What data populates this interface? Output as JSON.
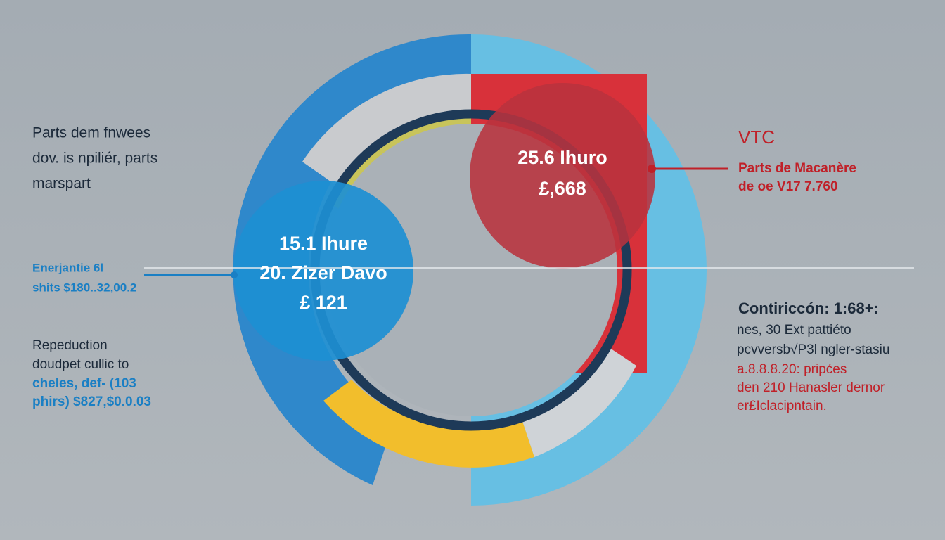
{
  "left_block": {
    "title_lines": [
      "Parts dem fnwees",
      "dov. is npiliér, parts",
      "marspart"
    ],
    "callout_lines": [
      "Enerjantie 6l",
      "shits $180..32,00.2"
    ],
    "note_lines": [
      "Repeduction",
      "doudpet cullic to",
      "cheles, def- (103",
      "phirs) $827,$0.0.03"
    ]
  },
  "blue_circle": {
    "lines": [
      "15.1 Ihure",
      "20. Zizer Davo",
      "£ 121"
    ]
  },
  "red_circle": {
    "lines": [
      "25.6 Ihuro",
      "£,668"
    ]
  },
  "right_block": {
    "heading": "VTC",
    "callout_lines": [
      "Parts de Macanère",
      "de oe V17 7.760"
    ],
    "note_title": "Contiriccón: 1:68+:",
    "note_lines": [
      "nes, 30 Ext pattiéto",
      "pcvversb√P3l ngler-stasiu"
    ],
    "red_lines": [
      "a.8.8.8.20: pripćes",
      "den 210 Hanasler dernor",
      "er£Iclacipntain."
    ]
  }
}
